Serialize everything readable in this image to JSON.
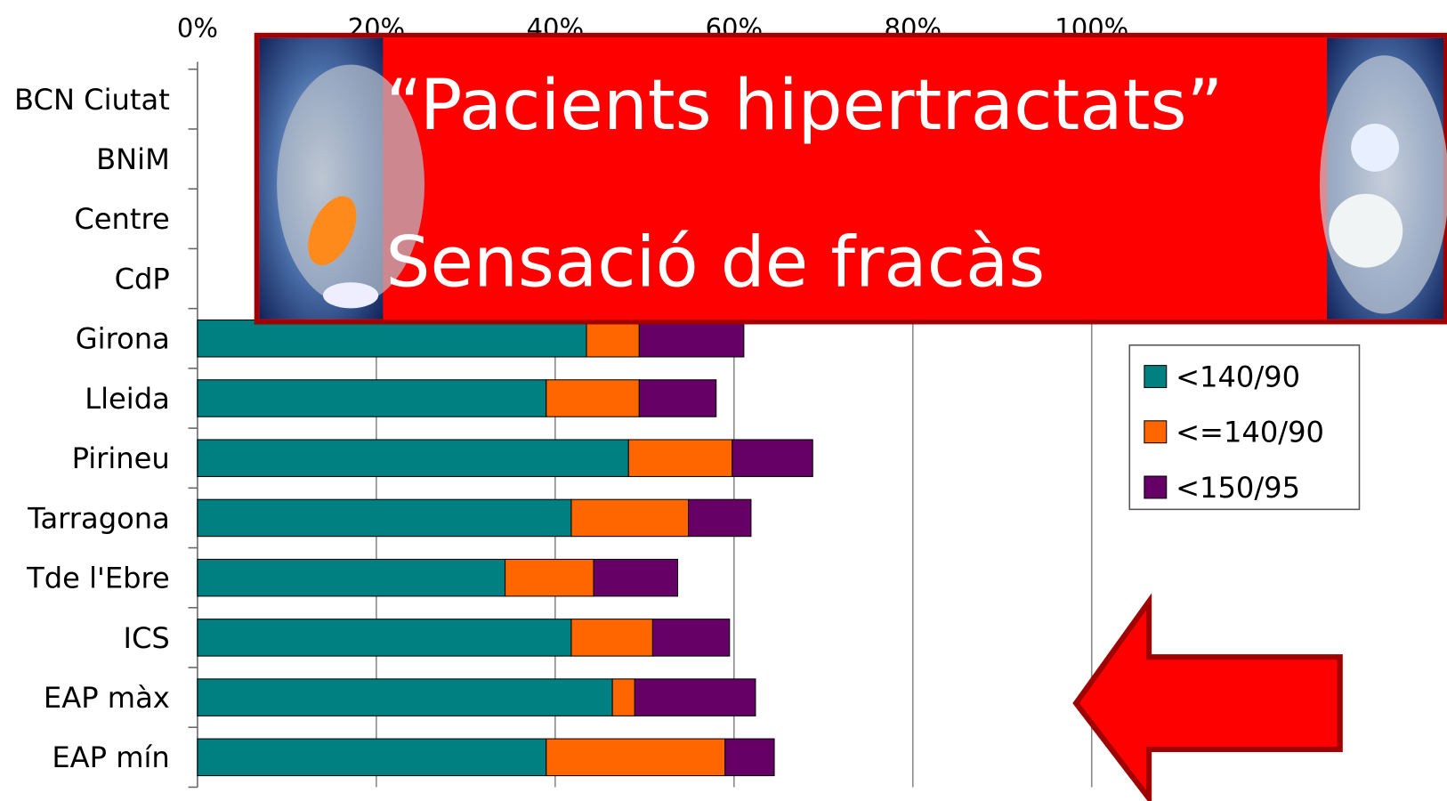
{
  "chart_data": {
    "type": "stacked-bar-horizontal",
    "categories": [
      "BCN Ciutat",
      "BNiM",
      "Centre",
      "CdP",
      "Girona",
      "Lleida",
      "Pirineu",
      "Tarragona",
      "Tde l'Ebre",
      "ICS",
      "EAP màx",
      "EAP mín"
    ],
    "series": [
      {
        "name": "<140/90",
        "color": "#008080",
        "values": [
          null,
          null,
          null,
          null,
          43.5,
          39,
          48.2,
          41.8,
          34.4,
          41.8,
          46.4,
          39
        ]
      },
      {
        "name": "<=140/90",
        "color": "#ff6600",
        "values": [
          null,
          null,
          null,
          null,
          5.9,
          10.4,
          11.6,
          13.1,
          9.9,
          9.1,
          2.5,
          20
        ]
      },
      {
        "name": "<150/95",
        "color": "#660066",
        "values": [
          null,
          null,
          null,
          null,
          11.7,
          8.6,
          9.0,
          7.0,
          9.4,
          8.6,
          13.5,
          5.5
        ]
      }
    ],
    "xlim": [
      0,
      100
    ],
    "xticks": [
      {
        "value": 0,
        "label": "0%"
      },
      {
        "value": 20,
        "label": "20%"
      },
      {
        "value": 40,
        "label": "40%"
      },
      {
        "value": 60,
        "label": "60%"
      },
      {
        "value": 80,
        "label": "80%"
      },
      {
        "value": 100,
        "label": "100%"
      }
    ],
    "grid": true,
    "legend": "right",
    "annotations": [
      "“Pacients hipertractats”",
      "Sensació de fracàs"
    ]
  }
}
